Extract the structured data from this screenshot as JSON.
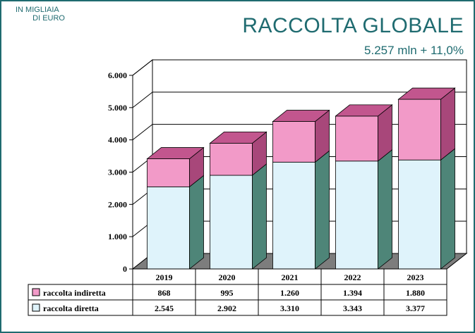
{
  "header": {
    "unit_line1": "IN MIGLIAIA",
    "unit_line2": "DI EURO",
    "title": "RACCOLTA GLOBALE",
    "subtitle": "5.257 mln + 11,0%"
  },
  "colors": {
    "frame": "#1f6b70",
    "indiretta_front": "#f29ac8",
    "indiretta_side": "#a8477a",
    "indiretta_top": "#c2568e",
    "diretta_front": "#dff3fb",
    "diretta_side": "#4e8578",
    "diretta_top": "#dff3fb",
    "floor": "#7d7d7d",
    "wall": "#ffffff"
  },
  "chart_data": {
    "type": "bar",
    "stacked": true,
    "three_d": true,
    "categories": [
      "2019",
      "2020",
      "2021",
      "2022",
      "2023"
    ],
    "ylim": [
      0,
      6000
    ],
    "yticks": [
      "0",
      "1.000",
      "2.000",
      "3.000",
      "4.000",
      "5.000",
      "6.000"
    ],
    "grid": true,
    "series": [
      {
        "name": "raccolta diretta",
        "values": [
          2545,
          2902,
          3310,
          3343,
          3377
        ],
        "labels": [
          "2.545",
          "2.902",
          "3.310",
          "3.343",
          "3.377"
        ]
      },
      {
        "name": "raccolta indiretta",
        "values": [
          868,
          995,
          1260,
          1394,
          1880
        ],
        "labels": [
          "868",
          "995",
          "1.260",
          "1.394",
          "1.880"
        ]
      }
    ]
  }
}
